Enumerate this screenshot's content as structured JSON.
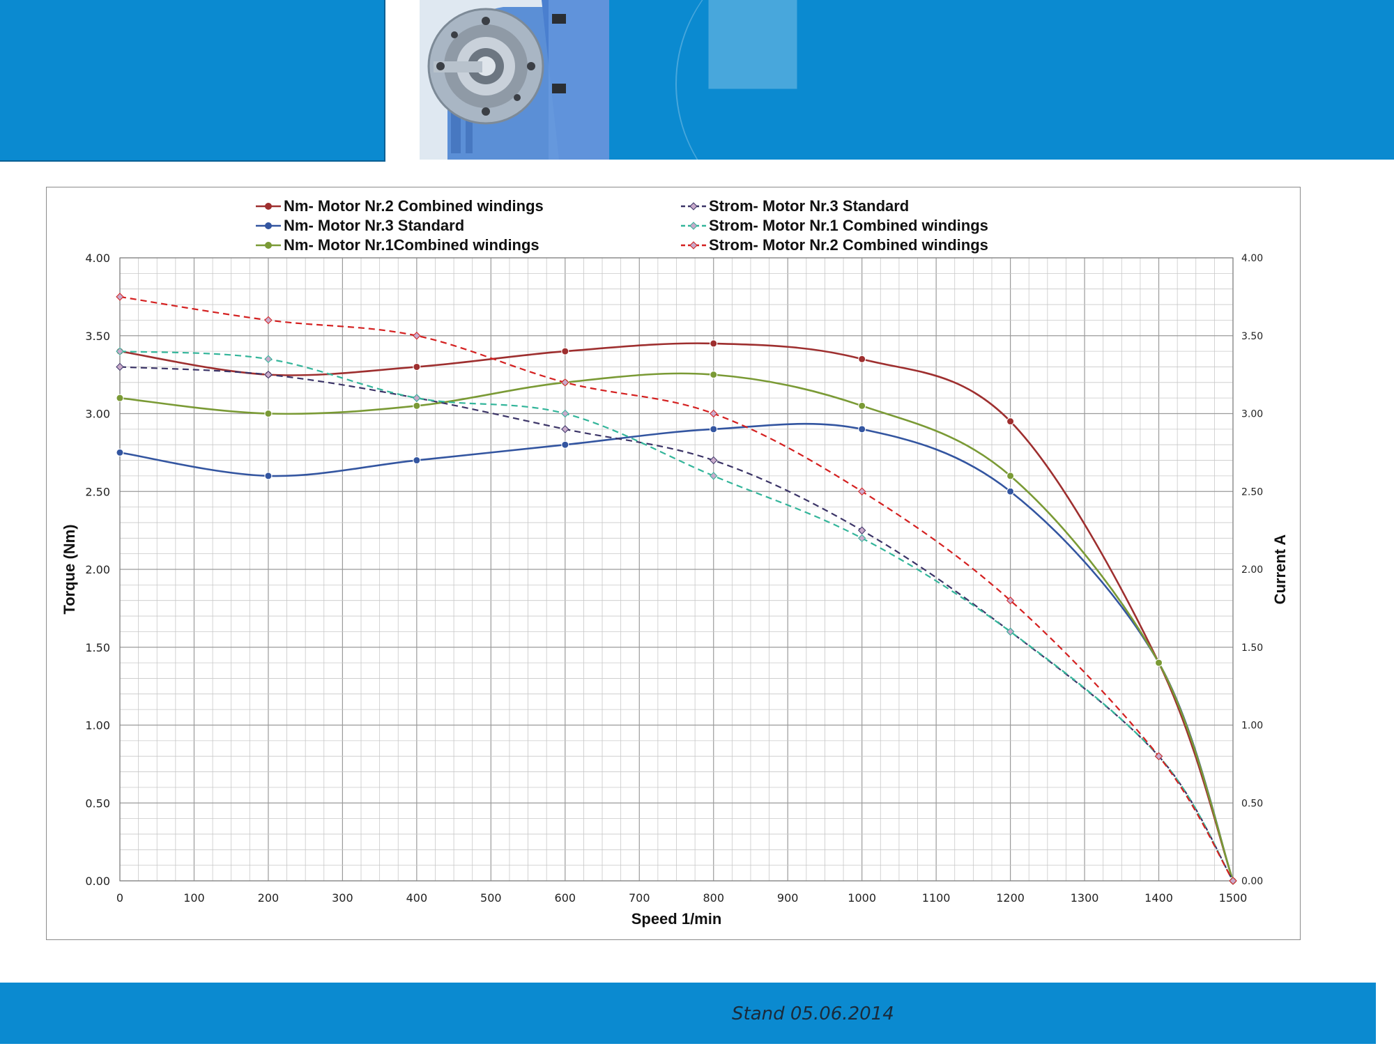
{
  "footer": {
    "date": "Stand 05.06.2014"
  },
  "chart_data": {
    "type": "line",
    "xlabel": "Speed 1/min",
    "ylabel": "Torque (Nm)",
    "y2label": "Current A",
    "xlim": [
      0,
      1500
    ],
    "ylim": [
      0,
      4
    ],
    "y2lim": [
      0,
      4
    ],
    "x_ticks": [
      0,
      100,
      200,
      300,
      400,
      500,
      600,
      700,
      800,
      900,
      1000,
      1100,
      1200,
      1300,
      1400,
      1500
    ],
    "y_ticks": [
      "0.00",
      "0.50",
      "1.00",
      "1.50",
      "2.00",
      "2.50",
      "3.00",
      "3.50",
      "4.00"
    ],
    "grid": true,
    "legend_position": "top",
    "series": [
      {
        "name": "Nm- Motor Nr.2 Combined windings",
        "style": "solid",
        "marker": "circle",
        "color": "#9e2f2f",
        "x": [
          0,
          200,
          400,
          600,
          800,
          1000,
          1200,
          1400,
          1500
        ],
        "values": [
          3.4,
          3.25,
          3.3,
          3.4,
          3.45,
          3.35,
          2.95,
          1.4,
          0.0
        ]
      },
      {
        "name": "Nm- Motor Nr.3 Standard",
        "style": "solid",
        "marker": "circle",
        "color": "#3355a0",
        "x": [
          0,
          200,
          400,
          600,
          800,
          1000,
          1200,
          1400,
          1500
        ],
        "values": [
          2.75,
          2.6,
          2.7,
          2.8,
          2.9,
          2.9,
          2.5,
          1.4,
          0.0
        ]
      },
      {
        "name": "Nm- Motor Nr.1Combined windings",
        "style": "solid",
        "marker": "circle",
        "color": "#7a9a35",
        "x": [
          0,
          200,
          400,
          600,
          800,
          1000,
          1200,
          1400,
          1500
        ],
        "values": [
          3.1,
          3.0,
          3.05,
          3.2,
          3.25,
          3.05,
          2.6,
          1.4,
          0.0
        ]
      },
      {
        "name": "Strom- Motor Nr.3 Standard",
        "style": "dashed",
        "marker": "diamond",
        "color": "#3b3467",
        "x": [
          0,
          200,
          400,
          600,
          800,
          1000,
          1200,
          1400,
          1500
        ],
        "values": [
          3.3,
          3.25,
          3.1,
          2.9,
          2.7,
          2.25,
          1.6,
          0.8,
          0.0
        ]
      },
      {
        "name": "Strom- Motor Nr.1  Combined windings",
        "style": "dashed",
        "marker": "diamond",
        "color": "#33b59a",
        "x": [
          0,
          200,
          400,
          600,
          800,
          1000,
          1200,
          1400,
          1500
        ],
        "values": [
          3.4,
          3.35,
          3.1,
          3.0,
          2.6,
          2.2,
          1.6,
          0.8,
          0.0
        ]
      },
      {
        "name": "Strom- Motor Nr.2 Combined windings",
        "style": "dashed",
        "marker": "diamond",
        "color": "#d42020",
        "x": [
          0,
          200,
          400,
          600,
          800,
          1000,
          1200,
          1400,
          1500
        ],
        "values": [
          3.75,
          3.6,
          3.5,
          3.2,
          3.0,
          2.5,
          1.8,
          0.8,
          0.0
        ]
      }
    ]
  }
}
